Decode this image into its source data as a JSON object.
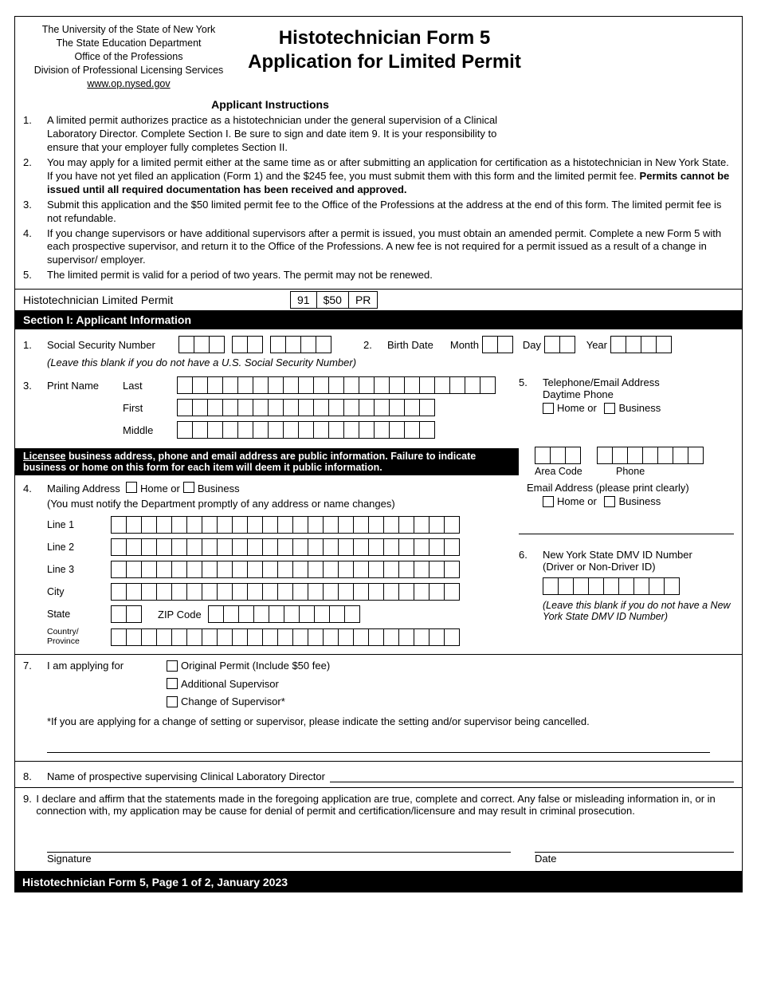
{
  "header": {
    "org_lines": [
      "The University of the State of New York",
      "The State Education Department",
      "Office of the Professions",
      "Division of Professional Licensing Services"
    ],
    "url": "www.op.nysed.gov",
    "title_line1": "Histotechnician Form 5",
    "title_line2": "Application for Limited Permit"
  },
  "instr": {
    "title": "Applicant Instructions",
    "items": [
      "A limited permit authorizes practice as a histotechnician under the general supervision of a Clinical Laboratory Director. Complete Section I. Be sure to sign and date item 9. It is your responsibility to ensure that your employer fully completes Section II.",
      "You may apply for a limited permit either at the same time as or after submitting an application for certification as a histotechnician in New York State. If you have not yet filed an application (Form 1) and the $245 fee, you must submit them with this form and the limited permit fee. Permits cannot be issued until all required documentation has been received and approved.",
      "Submit this application and the $50 limited permit fee to the Office of the Professions at the address at the end of this form. The limited permit fee is not refundable.",
      "If you change supervisors or have additional supervisors after a permit is issued, you must obtain an amended permit. Complete a new Form 5 with each prospective supervisor, and return it to the Office of the Professions. A new fee is not required for a permit issued as a result of a change in supervisor/ employer.",
      "The limited permit is valid for a period of two years. The permit may not be renewed."
    ],
    "bold2_a": "Permits cannot be issued until all required documentation has been received and approved."
  },
  "permit_bar": {
    "label": "Histotechnician Limited Permit",
    "codes": [
      "91",
      "$50",
      "PR"
    ]
  },
  "section1": {
    "title": "Section I: Applicant Information",
    "q1_label": "Social Security Number",
    "q1_note": "(Leave this blank if you do not have a U.S. Social Security Number)",
    "q2_label": "Birth Date",
    "q2_month": "Month",
    "q2_day": "Day",
    "q2_year": "Year",
    "q3_label": "Print Name",
    "q3_last": "Last",
    "q3_first": "First",
    "q3_middle": "Middle",
    "q5_label": "Telephone/Email Address",
    "q5_daytime": "Daytime Phone",
    "q5_home": "Home or",
    "q5_business": "Business",
    "q5_area": "Area Code",
    "q5_phone": "Phone",
    "q5_email_label": "Email Address (please print clearly)",
    "notice_line1": "Licensee business address, phone and email address are public information. Failure to indicate business or home on this form for each item will deem it public information.",
    "q4_label": "Mailing Address",
    "q4_home": "Home or",
    "q4_business": "Business",
    "q4_note": "(You must notify the Department promptly of any address or name changes)",
    "q4_line1": "Line 1",
    "q4_line2": "Line 2",
    "q4_line3": "Line 3",
    "q4_city": "City",
    "q4_state": "State",
    "q4_zip": "ZIP Code",
    "q4_country": "Country/\nProvince",
    "q6_label": "New York State DMV ID Number",
    "q6_sub": "(Driver or Non-Driver ID)",
    "q6_note": "(Leave this blank if you do not have a New York State DMV ID Number)",
    "q7_label": "I am applying for",
    "q7_opt1": "Original Permit (Include $50 fee)",
    "q7_opt2": "Additional Supervisor",
    "q7_opt3": "Change of Supervisor*",
    "q7_note": "*If you are applying for a change of setting or supervisor, please indicate the setting and/or supervisor being cancelled.",
    "q8_label": "Name of prospective supervising Clinical Laboratory Director",
    "q9_text": "I declare and affirm that the statements made in the foregoing application are true, complete and correct. Any false or misleading information in, or in connection with, my application may be cause for denial of permit and certification/licensure and may result in criminal prosecution.",
    "sig": "Signature",
    "date": "Date"
  },
  "footer": "Histotechnician Form 5, Page 1 of 2, January 2023",
  "boxes": {
    "ssn": [
      3,
      2,
      4
    ],
    "name_last": 21,
    "name_first": 17,
    "name_middle": 17,
    "month": 2,
    "day": 2,
    "year": 4,
    "addr_line": 23,
    "city": 23,
    "state": 2,
    "zip": 10,
    "country": 23,
    "area": 3,
    "phone": 7,
    "dmv": 9
  }
}
